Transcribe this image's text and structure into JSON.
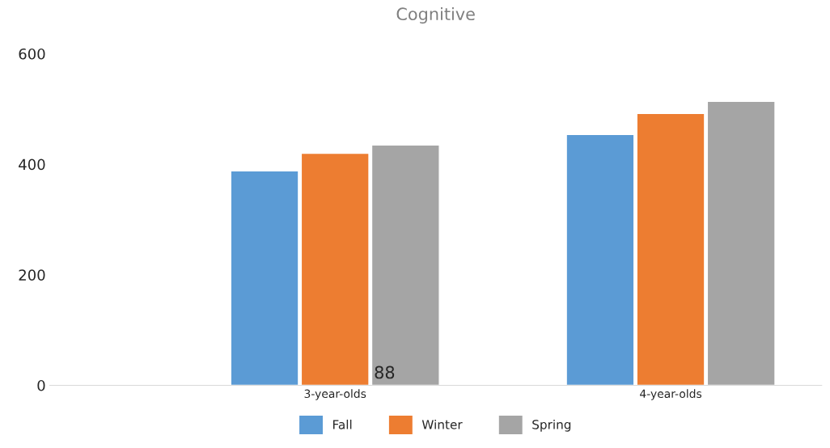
{
  "chart_data": {
    "type": "bar",
    "title": "Cognitive",
    "categories": [
      "3-year-olds",
      "4-year-olds"
    ],
    "series": [
      {
        "name": "Fall",
        "color": "#5b9bd5",
        "values": [
          388,
          454
        ]
      },
      {
        "name": "Winter",
        "color": "#ed7d31",
        "values": [
          420,
          492
        ]
      },
      {
        "name": "Spring",
        "color": "#a5a5a5",
        "values": [
          435,
          514
        ]
      }
    ],
    "ylim": [
      0,
      600
    ],
    "yticks": [
      0,
      200,
      400,
      600
    ],
    "grid": false,
    "legend": "bottom",
    "annotations": [
      "88"
    ]
  }
}
